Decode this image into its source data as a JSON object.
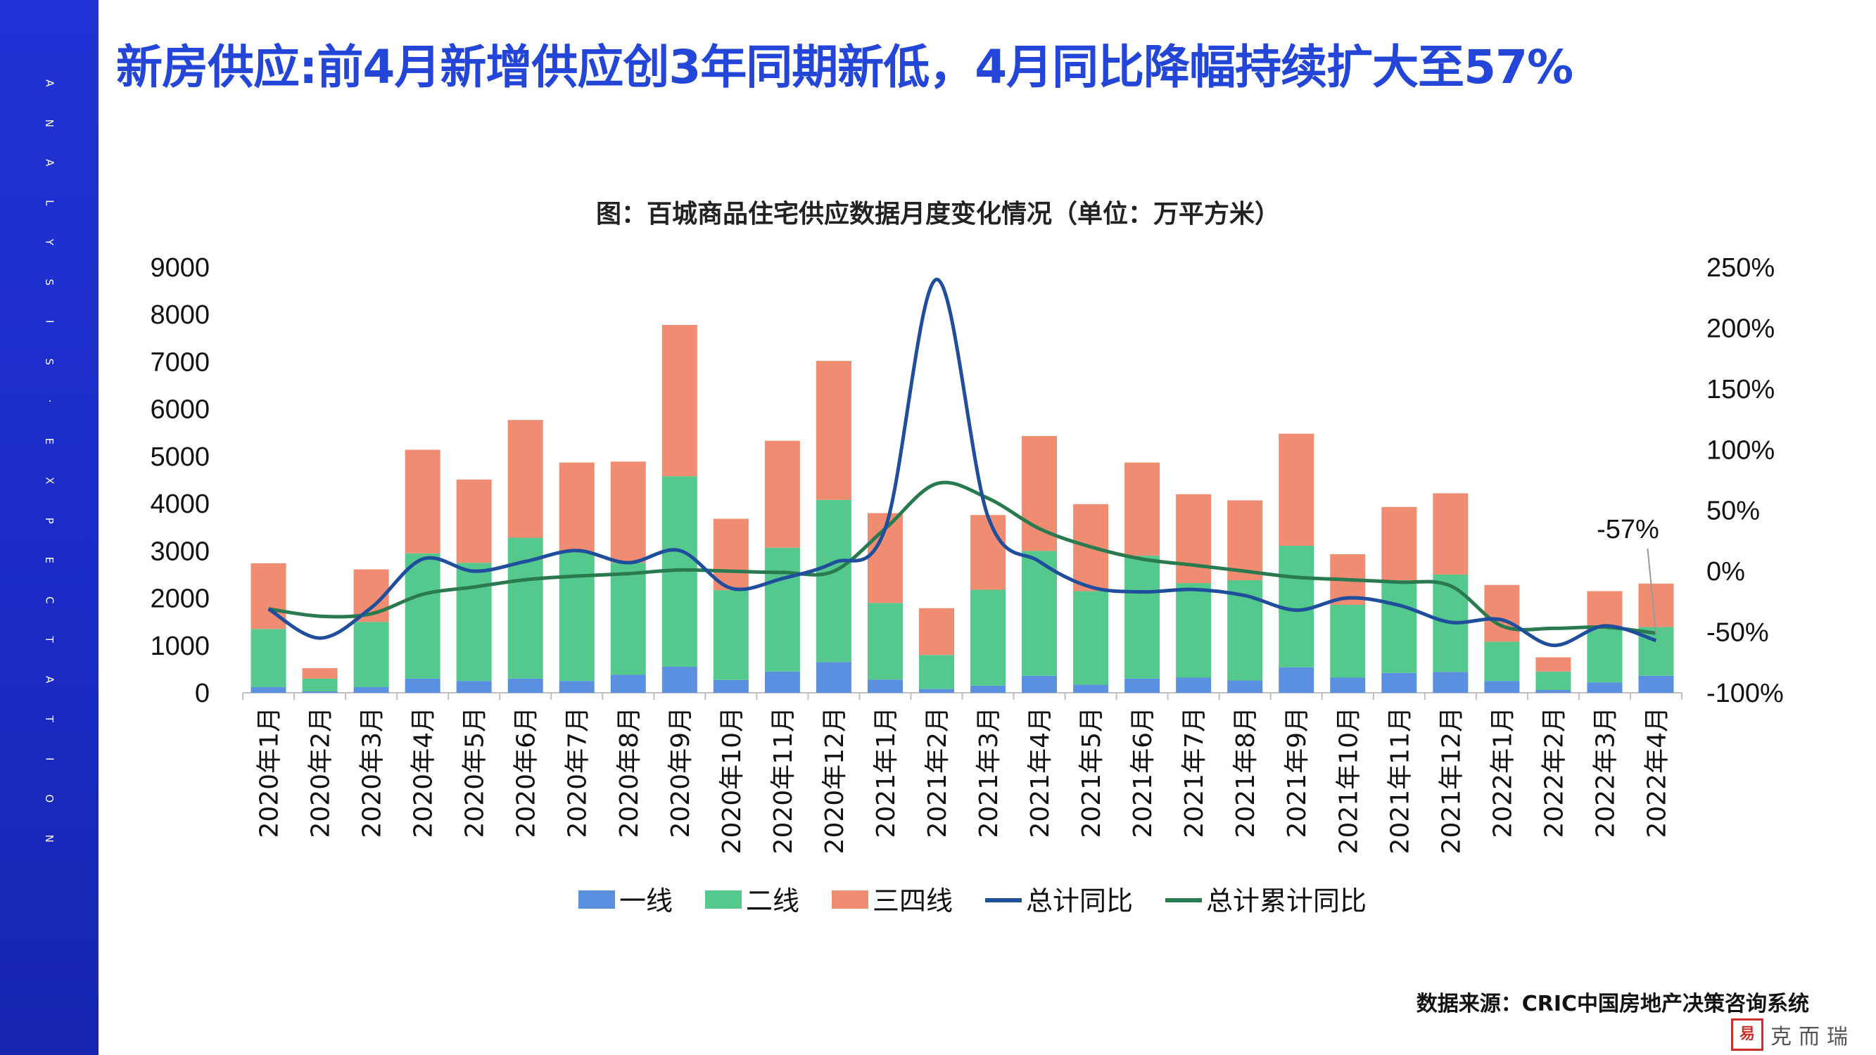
{
  "page": {
    "title": "新房供应:前4月新增供应创3年同期新低，4月同比降幅持续扩大至57%",
    "side_text": [
      "A",
      "N",
      "A",
      "L",
      "Y",
      "S",
      "I",
      "S",
      "·",
      "E",
      "X",
      "P",
      "E",
      "C",
      "T",
      "A",
      "T",
      "I",
      "O",
      "N"
    ],
    "source": "数据来源：CRIC中国房地产决策咨询系统",
    "logo_text": "克而瑞",
    "logo_seal": "易",
    "colors": {
      "title_blue": "#2345d8",
      "sidebar": "#1a2bc4"
    }
  },
  "chart_data": {
    "type": "bar",
    "stacked": true,
    "title": "图：百城商品住宅供应数据月度变化情况（单位：万平方米）",
    "categories": [
      "2020年1月",
      "2020年2月",
      "2020年3月",
      "2020年4月",
      "2020年5月",
      "2020年6月",
      "2020年7月",
      "2020年8月",
      "2020年9月",
      "2020年10月",
      "2020年11月",
      "2020年12月",
      "2021年1月",
      "2021年2月",
      "2021年3月",
      "2021年4月",
      "2021年5月",
      "2021年6月",
      "2021年7月",
      "2021年8月",
      "2021年9月",
      "2021年10月",
      "2021年11月",
      "2021年12月",
      "2022年1月",
      "2022年2月",
      "2022年3月",
      "2022年4月"
    ],
    "ylim": [
      0,
      9000
    ],
    "yticks": [
      0,
      1000,
      2000,
      3000,
      4000,
      5000,
      6000,
      7000,
      8000,
      9000
    ],
    "y2lim": [
      -100,
      250
    ],
    "y2ticks": [
      -100,
      -50,
      0,
      50,
      100,
      150,
      200,
      250
    ],
    "y2tick_labels": [
      "-100%",
      "-50%",
      "0%",
      "50%",
      "100%",
      "150%",
      "200%",
      "250%"
    ],
    "series": [
      {
        "name": "一线",
        "kind": "bar",
        "color": "#5b8fe0",
        "values": [
          120,
          30,
          120,
          300,
          250,
          300,
          250,
          380,
          550,
          270,
          450,
          650,
          280,
          80,
          150,
          360,
          170,
          300,
          320,
          260,
          540,
          320,
          420,
          440,
          250,
          60,
          220,
          360
        ]
      },
      {
        "name": "二线",
        "kind": "bar",
        "color": "#55c98d",
        "values": [
          1230,
          270,
          1380,
          2650,
          2500,
          2980,
          2720,
          2370,
          4030,
          1900,
          2620,
          3430,
          1620,
          720,
          2030,
          2640,
          1980,
          2600,
          2000,
          2120,
          2570,
          1540,
          1960,
          2060,
          830,
          390,
          1130,
          1030
        ]
      },
      {
        "name": "三四线",
        "kind": "bar",
        "color": "#f08c72",
        "values": [
          1390,
          220,
          1110,
          2190,
          1760,
          2490,
          1900,
          2140,
          3200,
          1510,
          2260,
          2940,
          1900,
          990,
          1580,
          2430,
          1840,
          1970,
          1880,
          1690,
          2370,
          1070,
          1550,
          1720,
          1200,
          300,
          800,
          920
        ]
      },
      {
        "name": "总计同比",
        "kind": "line",
        "axis": "right",
        "color": "#1f4e9c",
        "values": [
          -31,
          -55,
          -30,
          10,
          0,
          8,
          17,
          7,
          17,
          -14,
          -6,
          7,
          35,
          240,
          45,
          8,
          -13,
          -17,
          -15,
          -20,
          -32,
          -22,
          -28,
          -42,
          -40,
          -61,
          -45,
          -57
        ]
      },
      {
        "name": "总计累计同比",
        "kind": "line",
        "axis": "right",
        "color": "#2a7a50",
        "values": [
          -31,
          -37,
          -35,
          -19,
          -13,
          -7,
          -4,
          -2,
          1,
          0,
          -1,
          0,
          35,
          72,
          60,
          35,
          20,
          10,
          5,
          0,
          -5,
          -7,
          -9,
          -12,
          -45,
          -47,
          -46,
          -51
        ]
      }
    ],
    "annotations": [
      {
        "text": "-57%"
      }
    ],
    "legend": "bottom",
    "grid": false
  }
}
